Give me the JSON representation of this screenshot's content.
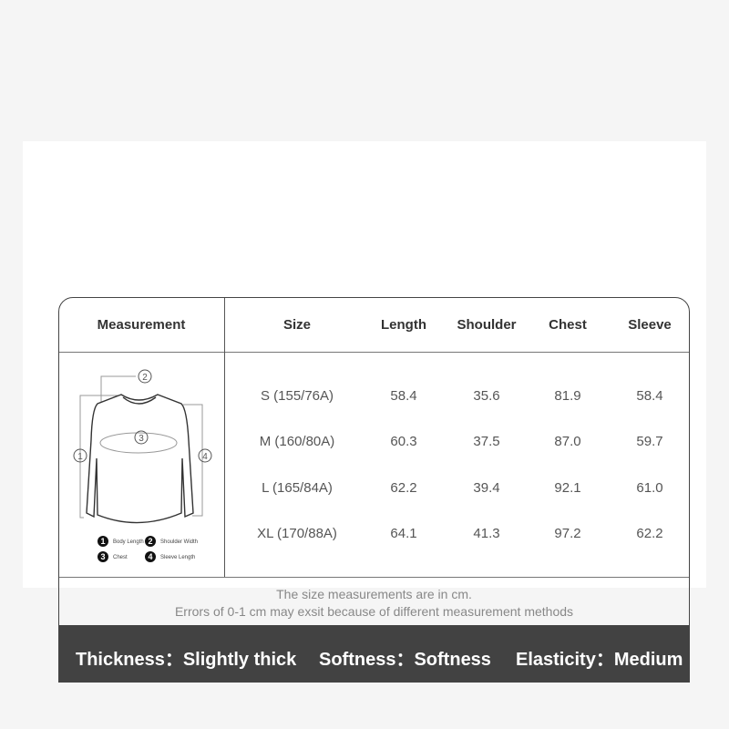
{
  "headers": [
    "Measurement",
    "Size",
    "Length",
    "Shoulder",
    "Chest",
    "Sleeve"
  ],
  "rows": [
    [
      "S (155/76A)",
      "58.4",
      "35.6",
      "81.9",
      "58.4"
    ],
    [
      "M (160/80A)",
      "60.3",
      "37.5",
      "87.0",
      "59.7"
    ],
    [
      "L (165/84A)",
      "62.2",
      "39.4",
      "92.1",
      "61.0"
    ],
    [
      "XL (170/88A)",
      "64.1",
      "41.3",
      "97.2",
      "62.2"
    ]
  ],
  "legend": {
    "n1": "1",
    "l1": "Body Length",
    "n2": "2",
    "l2": "Shoulder Width",
    "n3": "3",
    "l3": "Chest",
    "n4": "4",
    "l4": "Sleeve Length"
  },
  "notes": {
    "line1": "The size measurements are in cm.",
    "line2": "Errors of 0-1 cm may exsit because of different measurement methods"
  },
  "properties": [
    {
      "label": "Thickness",
      "value": "Slightly thick"
    },
    {
      "label": "Softness",
      "value": "Softness"
    },
    {
      "label": "Elasticity",
      "value": "Medium"
    }
  ],
  "colors": {
    "band": "#424242",
    "border": "#444444"
  }
}
